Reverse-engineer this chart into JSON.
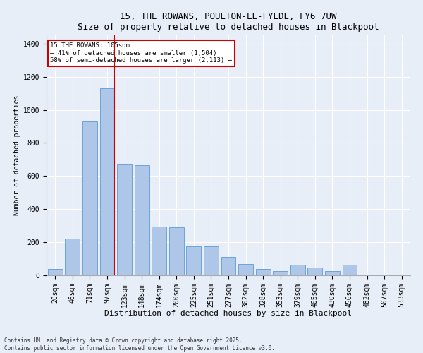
{
  "title": "15, THE ROWANS, POULTON-LE-FYLDE, FY6 7UW",
  "subtitle": "Size of property relative to detached houses in Blackpool",
  "xlabel": "Distribution of detached houses by size in Blackpool",
  "ylabel": "Number of detached properties",
  "categories": [
    "20sqm",
    "46sqm",
    "71sqm",
    "97sqm",
    "123sqm",
    "148sqm",
    "174sqm",
    "200sqm",
    "225sqm",
    "251sqm",
    "277sqm",
    "302sqm",
    "328sqm",
    "353sqm",
    "379sqm",
    "405sqm",
    "430sqm",
    "456sqm",
    "482sqm",
    "507sqm",
    "533sqm"
  ],
  "values": [
    40,
    220,
    930,
    1130,
    670,
    665,
    295,
    290,
    175,
    175,
    110,
    70,
    40,
    25,
    65,
    45,
    25,
    65,
    5,
    5,
    5
  ],
  "bar_color": "#aec6e8",
  "bar_edge_color": "#5b9bd5",
  "vline_index": 3,
  "vline_color": "#cc0000",
  "annotation_text": "15 THE ROWANS: 105sqm\n← 41% of detached houses are smaller (1,504)\n58% of semi-detached houses are larger (2,113) →",
  "annotation_box_color": "#cc0000",
  "ylim": [
    0,
    1450
  ],
  "yticks": [
    0,
    200,
    400,
    600,
    800,
    1000,
    1200,
    1400
  ],
  "footer": "Contains HM Land Registry data © Crown copyright and database right 2025.\nContains public sector information licensed under the Open Government Licence v3.0.",
  "bg_color": "#e8eef8",
  "plot_bg_color": "#e8eef8",
  "title_fontsize": 9,
  "subtitle_fontsize": 8,
  "xlabel_fontsize": 8,
  "ylabel_fontsize": 7,
  "tick_fontsize": 7,
  "footer_fontsize": 5.5
}
